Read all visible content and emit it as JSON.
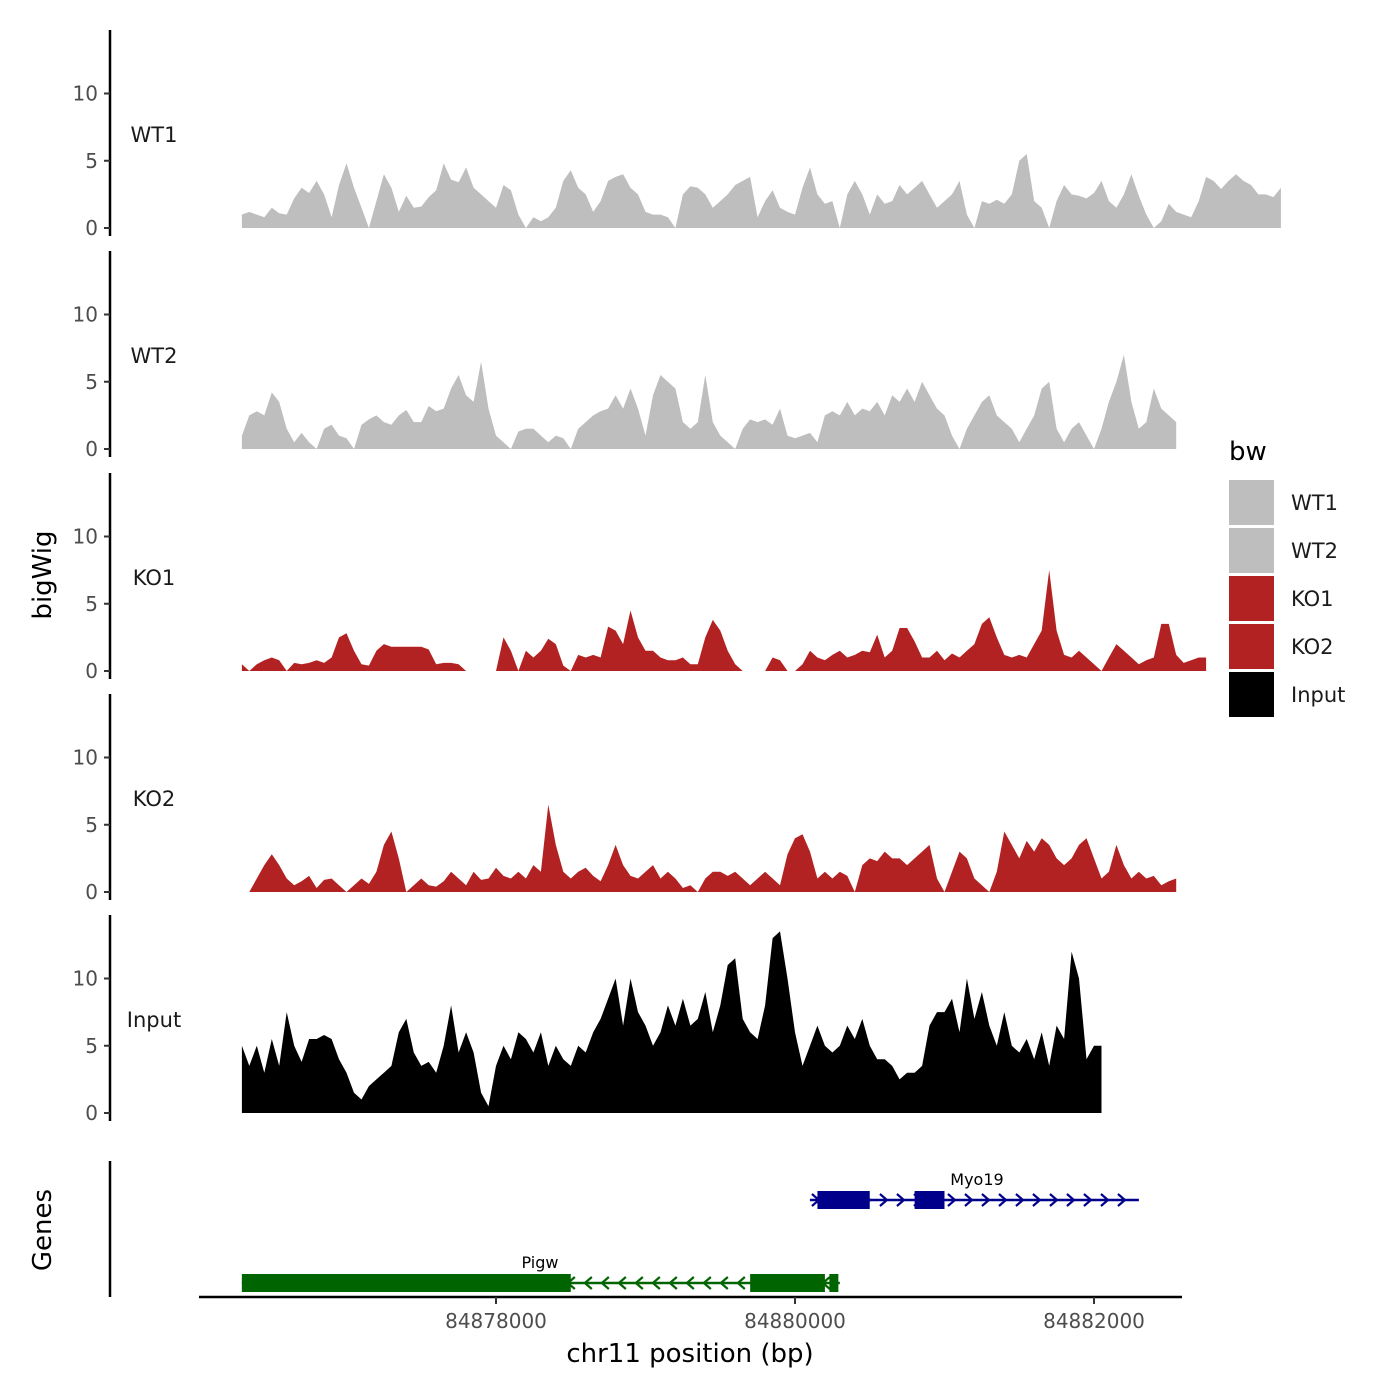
{
  "chart_data": {
    "type": "area",
    "title": "",
    "xlabel": "chr11 position (bp)",
    "ylabel": "bigWig",
    "genes_label": "Genes",
    "xlim": [
      84875400,
      84882600
    ],
    "ylim": [
      0,
      14.5
    ],
    "y_ticks": [
      0,
      5,
      10
    ],
    "x_ticks": [
      84878000,
      84880000,
      84882000
    ],
    "x_tick_labels": [
      "84878000",
      "84880000",
      "84882000"
    ],
    "legend": {
      "title": "bw",
      "position": "right",
      "items": [
        {
          "label": "WT1",
          "color": "#bebebe"
        },
        {
          "label": "WT2",
          "color": "#bebebe"
        },
        {
          "label": "KO1",
          "color": "#b22222"
        },
        {
          "label": "KO2",
          "color": "#b22222"
        },
        {
          "label": "Input",
          "color": "#000000"
        }
      ]
    },
    "x_start": 84876300,
    "x_step": 50,
    "series": [
      {
        "name": "WT1",
        "color": "#bebebe",
        "values": [
          1.0,
          1.2,
          1.0,
          0.8,
          1.5,
          1.1,
          1.0,
          2.2,
          3.0,
          2.6,
          3.5,
          2.5,
          0.8,
          3.2,
          4.8,
          3.0,
          1.5,
          0,
          2.0,
          4.0,
          3.0,
          1.2,
          2.4,
          1.5,
          1.6,
          2.3,
          2.8,
          4.8,
          3.6,
          3.4,
          4.5,
          3.0,
          2.5,
          2.0,
          1.5,
          3.2,
          2.8,
          1.0,
          0,
          0.8,
          0.5,
          0.8,
          1.5,
          3.5,
          4.3,
          3.0,
          2.5,
          1.2,
          2.0,
          3.5,
          3.8,
          4.0,
          3.0,
          2.5,
          1.2,
          1.0,
          1.0,
          0.8,
          0,
          2.5,
          3.1,
          3.0,
          2.5,
          1.5,
          2.0,
          2.5,
          3.2,
          3.5,
          3.8,
          0.8,
          2.0,
          2.8,
          1.5,
          1.2,
          1.0,
          3.0,
          4.5,
          2.5,
          1.8,
          2.0,
          0,
          2.5,
          3.5,
          2.5,
          1.0,
          2.5,
          1.8,
          2.0,
          3.2,
          2.5,
          3.0,
          3.5,
          2.5,
          1.5,
          2.0,
          2.5,
          3.5,
          1.0,
          0,
          2.0,
          1.8,
          2.1,
          1.8,
          2.5,
          5.0,
          5.5,
          2.0,
          1.5,
          0,
          2.0,
          3.2,
          2.5,
          2.4,
          2.2,
          2.6,
          3.5,
          2.0,
          1.5,
          2.5,
          4.0,
          2.4,
          1.0,
          0,
          0.5,
          1.8,
          1.2,
          1.0,
          0.8,
          2.0,
          3.8,
          3.5,
          2.9,
          3.5,
          4.0,
          3.5,
          3.2,
          2.5,
          2.5,
          2.3,
          3.0
        ]
      },
      {
        "name": "WT2",
        "color": "#bebebe",
        "values": [
          1.0,
          2.5,
          2.8,
          2.5,
          4.2,
          3.5,
          1.5,
          0.5,
          1.2,
          0.5,
          0,
          1.5,
          1.8,
          1.0,
          0.8,
          0,
          1.8,
          2.2,
          2.5,
          2.0,
          1.8,
          2.5,
          2.9,
          2.0,
          2.0,
          3.2,
          2.8,
          3.0,
          4.5,
          5.5,
          4.0,
          3.5,
          6.5,
          3.0,
          1.0,
          0.5,
          0,
          1.3,
          1.5,
          1.5,
          1.0,
          0.5,
          1.0,
          0.8,
          0,
          1.5,
          2.0,
          2.5,
          2.8,
          3.0,
          4.0,
          3.0,
          4.5,
          3.0,
          1.0,
          4.0,
          5.5,
          5.0,
          4.5,
          2.0,
          1.5,
          2.0,
          5.5,
          2.0,
          1.0,
          0.5,
          0,
          1.5,
          2.2,
          2.0,
          2.2,
          1.8,
          3.0,
          1.0,
          0.8,
          1.0,
          1.2,
          0.5,
          2.5,
          2.8,
          2.5,
          3.5,
          2.5,
          3.0,
          2.8,
          3.5,
          2.5,
          4.0,
          3.5,
          4.5,
          3.5,
          5.0,
          4.0,
          3.0,
          2.5,
          1.0,
          0,
          1.5,
          2.5,
          3.5,
          4.0,
          2.5,
          2.0,
          1.5,
          0.5,
          1.5,
          2.5,
          4.5,
          5.0,
          1.5,
          0.5,
          1.5,
          2.0,
          1.0,
          0,
          1.5,
          3.5,
          5.0,
          7.0,
          3.5,
          1.5,
          2.0,
          4.5,
          3.0,
          2.5,
          2.0
        ]
      },
      {
        "name": "KO1",
        "color": "#b22222",
        "values": [
          0.5,
          0,
          0.5,
          0.8,
          1.0,
          0.8,
          0,
          0.6,
          0.5,
          0.6,
          0.8,
          0.6,
          1.0,
          2.5,
          2.8,
          1.5,
          0.5,
          0.4,
          1.5,
          2.0,
          1.8,
          1.8,
          1.8,
          1.8,
          1.8,
          1.6,
          0.5,
          0.6,
          0.6,
          0.5,
          0,
          0,
          0,
          0,
          0,
          2.5,
          1.5,
          0,
          1.5,
          1.0,
          1.5,
          2.4,
          2.0,
          0.4,
          0,
          1.2,
          1.0,
          1.2,
          1.0,
          3.3,
          3.0,
          2.0,
          4.5,
          2.5,
          1.5,
          1.5,
          1.0,
          0.8,
          0.8,
          1.0,
          0.5,
          0.5,
          2.5,
          3.8,
          3.0,
          1.5,
          0.5,
          0,
          0,
          0,
          0,
          1.0,
          0.8,
          0,
          0,
          0.5,
          1.5,
          1.0,
          0.8,
          1.2,
          1.5,
          1.0,
          1.2,
          1.5,
          1.4,
          2.7,
          1.0,
          1.5,
          3.2,
          3.2,
          2.2,
          1.0,
          1.0,
          1.5,
          0.8,
          1.3,
          1.0,
          1.5,
          2.0,
          3.5,
          4.0,
          2.5,
          1.2,
          1.0,
          1.2,
          1.0,
          2.0,
          3.0,
          7.5,
          3.0,
          1.2,
          1.0,
          1.5,
          1.0,
          0.5,
          0,
          1.0,
          2.0,
          1.5,
          1.0,
          0.5,
          0.8,
          1.0,
          3.5,
          3.5,
          1.2,
          0.6,
          0.8,
          1.0,
          1.0
        ]
      },
      {
        "name": "KO2",
        "color": "#b22222",
        "values": [
          0,
          0,
          1.0,
          2.0,
          2.8,
          2.0,
          1.0,
          0.5,
          0.8,
          1.2,
          0.3,
          0.9,
          1.0,
          0.5,
          0,
          0.5,
          1.0,
          0.6,
          1.5,
          3.5,
          4.5,
          2.5,
          0,
          0.5,
          1.0,
          0.5,
          0.4,
          0.8,
          1.5,
          1.0,
          0.5,
          1.5,
          0.9,
          1.0,
          1.8,
          1.2,
          1.0,
          1.5,
          1.0,
          2.0,
          1.5,
          6.5,
          3.5,
          1.5,
          1.0,
          1.5,
          1.8,
          1.2,
          0.8,
          2.0,
          3.5,
          2.0,
          1.2,
          1.0,
          1.5,
          2.0,
          1.0,
          1.5,
          1.0,
          0.3,
          0.5,
          0,
          1.0,
          1.5,
          1.5,
          1.2,
          1.5,
          1.0,
          0.5,
          1.0,
          1.5,
          1.0,
          0.5,
          2.8,
          4.0,
          4.3,
          3.0,
          1.0,
          1.5,
          1.0,
          1.5,
          1.2,
          0,
          2.0,
          2.5,
          2.3,
          3.0,
          2.5,
          2.5,
          2.0,
          2.5,
          3.0,
          3.5,
          1.0,
          0,
          1.5,
          3.0,
          2.5,
          1.0,
          0.5,
          0,
          1.5,
          4.5,
          3.5,
          2.5,
          3.8,
          3.0,
          4.0,
          3.5,
          2.5,
          2.0,
          2.5,
          3.5,
          4.0,
          2.5,
          1.0,
          1.5,
          3.5,
          2.0,
          1.0,
          1.5,
          1.0,
          1.2,
          0.5,
          0.8,
          1.0
        ]
      },
      {
        "name": "Input",
        "color": "#000000",
        "values": [
          5.0,
          3.5,
          5.0,
          3.0,
          5.5,
          3.5,
          7.5,
          5.0,
          3.8,
          5.5,
          5.5,
          5.8,
          5.5,
          4.0,
          3.0,
          1.5,
          1.0,
          2.0,
          2.5,
          3.0,
          3.5,
          6.0,
          7.0,
          4.5,
          3.5,
          3.8,
          3.0,
          5.0,
          8.0,
          4.5,
          6.0,
          4.5,
          1.5,
          0.5,
          3.5,
          5.0,
          4.0,
          6.0,
          5.5,
          4.5,
          6.0,
          3.5,
          5.0,
          4.0,
          3.5,
          5.0,
          4.5,
          6.0,
          7.0,
          8.5,
          10.0,
          6.5,
          10.0,
          7.5,
          6.5,
          5.0,
          6.0,
          8.0,
          6.5,
          8.5,
          6.5,
          7.0,
          9.0,
          6.0,
          8.0,
          11.0,
          11.5,
          7.0,
          6.0,
          5.5,
          8.0,
          13.0,
          13.5,
          10.0,
          6.0,
          3.5,
          5.0,
          6.5,
          5.0,
          4.5,
          5.0,
          6.5,
          5.5,
          7.0,
          5.0,
          4.0,
          4.0,
          3.5,
          2.5,
          3.0,
          3.0,
          3.5,
          6.5,
          7.5,
          7.5,
          8.5,
          6.0,
          10.0,
          7.0,
          9.0,
          6.5,
          5.0,
          7.5,
          5.0,
          4.5,
          5.5,
          4.0,
          6.0,
          3.5,
          6.5,
          5.5,
          12.0,
          10.0,
          4.0,
          5.0,
          5.0
        ]
      }
    ],
    "genes": [
      {
        "name": "Myo19",
        "strand": "+",
        "color": "#00008b",
        "start": 84880100,
        "end": 84882300,
        "exons": [
          [
            84880150,
            84880500
          ],
          [
            84880800,
            84881000
          ]
        ]
      },
      {
        "name": "Pigw",
        "strand": "-",
        "color": "#006400",
        "start": 84876300,
        "end": 84880300,
        "exons": [
          [
            84876300,
            84878500
          ],
          [
            84879700,
            84880200
          ],
          [
            84880230,
            84880290
          ]
        ]
      }
    ]
  }
}
